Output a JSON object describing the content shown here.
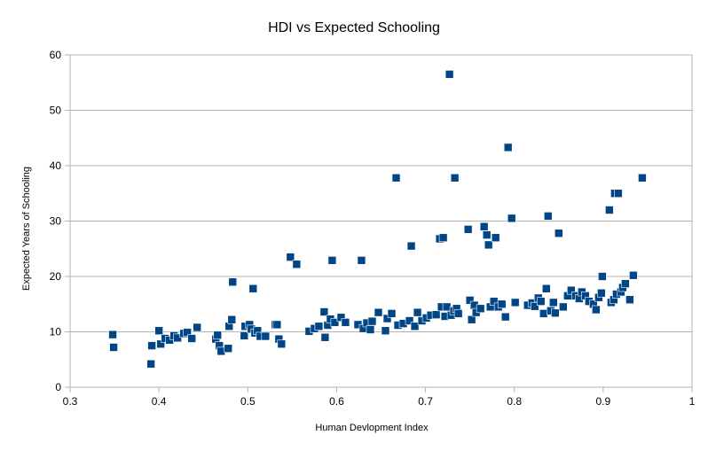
{
  "chart_data": {
    "type": "scatter",
    "title": "HDI vs Expected Schooling",
    "xlabel": "Human Devlopment Index",
    "ylabel": "Expected Years of Schooling",
    "xlim": [
      0.3,
      1
    ],
    "ylim": [
      0,
      60
    ],
    "xticks": [
      "0.3",
      "0.4",
      "0.5",
      "0.6",
      "0.7",
      "0.8",
      "0.9",
      "1"
    ],
    "yticks": [
      "0",
      "10",
      "20",
      "30",
      "40",
      "50",
      "60"
    ],
    "grid": "horizontal",
    "legend": "none",
    "marker": "square",
    "marker_color": "#004586",
    "points": [
      [
        0.348,
        9.5
      ],
      [
        0.349,
        7.2
      ],
      [
        0.391,
        4.2
      ],
      [
        0.392,
        7.5
      ],
      [
        0.4,
        10.2
      ],
      [
        0.402,
        7.8
      ],
      [
        0.407,
        8.8
      ],
      [
        0.412,
        8.5
      ],
      [
        0.417,
        9.3
      ],
      [
        0.421,
        8.9
      ],
      [
        0.428,
        9.7
      ],
      [
        0.432,
        9.9
      ],
      [
        0.437,
        8.8
      ],
      [
        0.443,
        10.8
      ],
      [
        0.464,
        8.7
      ],
      [
        0.466,
        9.4
      ],
      [
        0.468,
        7.5
      ],
      [
        0.47,
        6.5
      ],
      [
        0.478,
        7.0
      ],
      [
        0.479,
        11.0
      ],
      [
        0.482,
        12.2
      ],
      [
        0.483,
        19.0
      ],
      [
        0.496,
        9.3
      ],
      [
        0.497,
        11.0
      ],
      [
        0.502,
        11.3
      ],
      [
        0.504,
        10.5
      ],
      [
        0.506,
        17.8
      ],
      [
        0.508,
        9.8
      ],
      [
        0.511,
        10.2
      ],
      [
        0.514,
        9.2
      ],
      [
        0.52,
        9.2
      ],
      [
        0.531,
        11.3
      ],
      [
        0.533,
        11.3
      ],
      [
        0.535,
        8.7
      ],
      [
        0.538,
        7.8
      ],
      [
        0.548,
        23.5
      ],
      [
        0.555,
        22.2
      ],
      [
        0.569,
        10.1
      ],
      [
        0.575,
        10.6
      ],
      [
        0.58,
        11.0
      ],
      [
        0.586,
        13.6
      ],
      [
        0.587,
        9.0
      ],
      [
        0.59,
        11.2
      ],
      [
        0.593,
        12.3
      ],
      [
        0.595,
        22.9
      ],
      [
        0.598,
        11.7
      ],
      [
        0.605,
        12.6
      ],
      [
        0.61,
        11.7
      ],
      [
        0.624,
        11.3
      ],
      [
        0.628,
        22.9
      ],
      [
        0.63,
        10.6
      ],
      [
        0.634,
        11.6
      ],
      [
        0.638,
        10.4
      ],
      [
        0.64,
        11.9
      ],
      [
        0.647,
        13.5
      ],
      [
        0.655,
        10.2
      ],
      [
        0.657,
        12.4
      ],
      [
        0.662,
        13.3
      ],
      [
        0.667,
        37.8
      ],
      [
        0.669,
        11.2
      ],
      [
        0.675,
        11.5
      ],
      [
        0.682,
        12.0
      ],
      [
        0.684,
        25.5
      ],
      [
        0.688,
        11.0
      ],
      [
        0.691,
        13.5
      ],
      [
        0.696,
        12.0
      ],
      [
        0.701,
        12.5
      ],
      [
        0.706,
        13.0
      ],
      [
        0.712,
        13.1
      ],
      [
        0.716,
        26.8
      ],
      [
        0.718,
        14.5
      ],
      [
        0.72,
        27.0
      ],
      [
        0.722,
        12.8
      ],
      [
        0.724,
        14.5
      ],
      [
        0.727,
        56.5
      ],
      [
        0.729,
        13.0
      ],
      [
        0.732,
        13.8
      ],
      [
        0.733,
        37.8
      ],
      [
        0.735,
        14.2
      ],
      [
        0.737,
        13.3
      ],
      [
        0.748,
        28.5
      ],
      [
        0.75,
        15.7
      ],
      [
        0.752,
        12.2
      ],
      [
        0.755,
        14.8
      ],
      [
        0.757,
        13.5
      ],
      [
        0.762,
        14.2
      ],
      [
        0.766,
        29.0
      ],
      [
        0.769,
        27.5
      ],
      [
        0.771,
        25.7
      ],
      [
        0.773,
        14.5
      ],
      [
        0.777,
        15.5
      ],
      [
        0.779,
        27.0
      ],
      [
        0.782,
        14.5
      ],
      [
        0.786,
        15.0
      ],
      [
        0.79,
        12.7
      ],
      [
        0.793,
        43.3
      ],
      [
        0.797,
        30.5
      ],
      [
        0.801,
        15.3
      ],
      [
        0.815,
        14.8
      ],
      [
        0.82,
        15.2
      ],
      [
        0.823,
        14.6
      ],
      [
        0.827,
        16.1
      ],
      [
        0.83,
        15.5
      ],
      [
        0.833,
        13.3
      ],
      [
        0.836,
        17.8
      ],
      [
        0.838,
        30.9
      ],
      [
        0.841,
        13.8
      ],
      [
        0.844,
        15.3
      ],
      [
        0.846,
        13.4
      ],
      [
        0.85,
        27.8
      ],
      [
        0.855,
        14.5
      ],
      [
        0.86,
        16.5
      ],
      [
        0.864,
        17.5
      ],
      [
        0.869,
        16.5
      ],
      [
        0.873,
        16.0
      ],
      [
        0.876,
        17.2
      ],
      [
        0.88,
        16.5
      ],
      [
        0.884,
        15.5
      ],
      [
        0.889,
        15.0
      ],
      [
        0.892,
        14.0
      ],
      [
        0.895,
        16.2
      ],
      [
        0.898,
        17.0
      ],
      [
        0.899,
        20.0
      ],
      [
        0.907,
        32.0
      ],
      [
        0.909,
        15.3
      ],
      [
        0.912,
        15.8
      ],
      [
        0.913,
        35.0
      ],
      [
        0.915,
        16.8
      ],
      [
        0.917,
        35.0
      ],
      [
        0.92,
        17.2
      ],
      [
        0.922,
        18.0
      ],
      [
        0.925,
        18.7
      ],
      [
        0.93,
        15.8
      ],
      [
        0.934,
        20.2
      ],
      [
        0.944,
        37.8
      ]
    ]
  }
}
